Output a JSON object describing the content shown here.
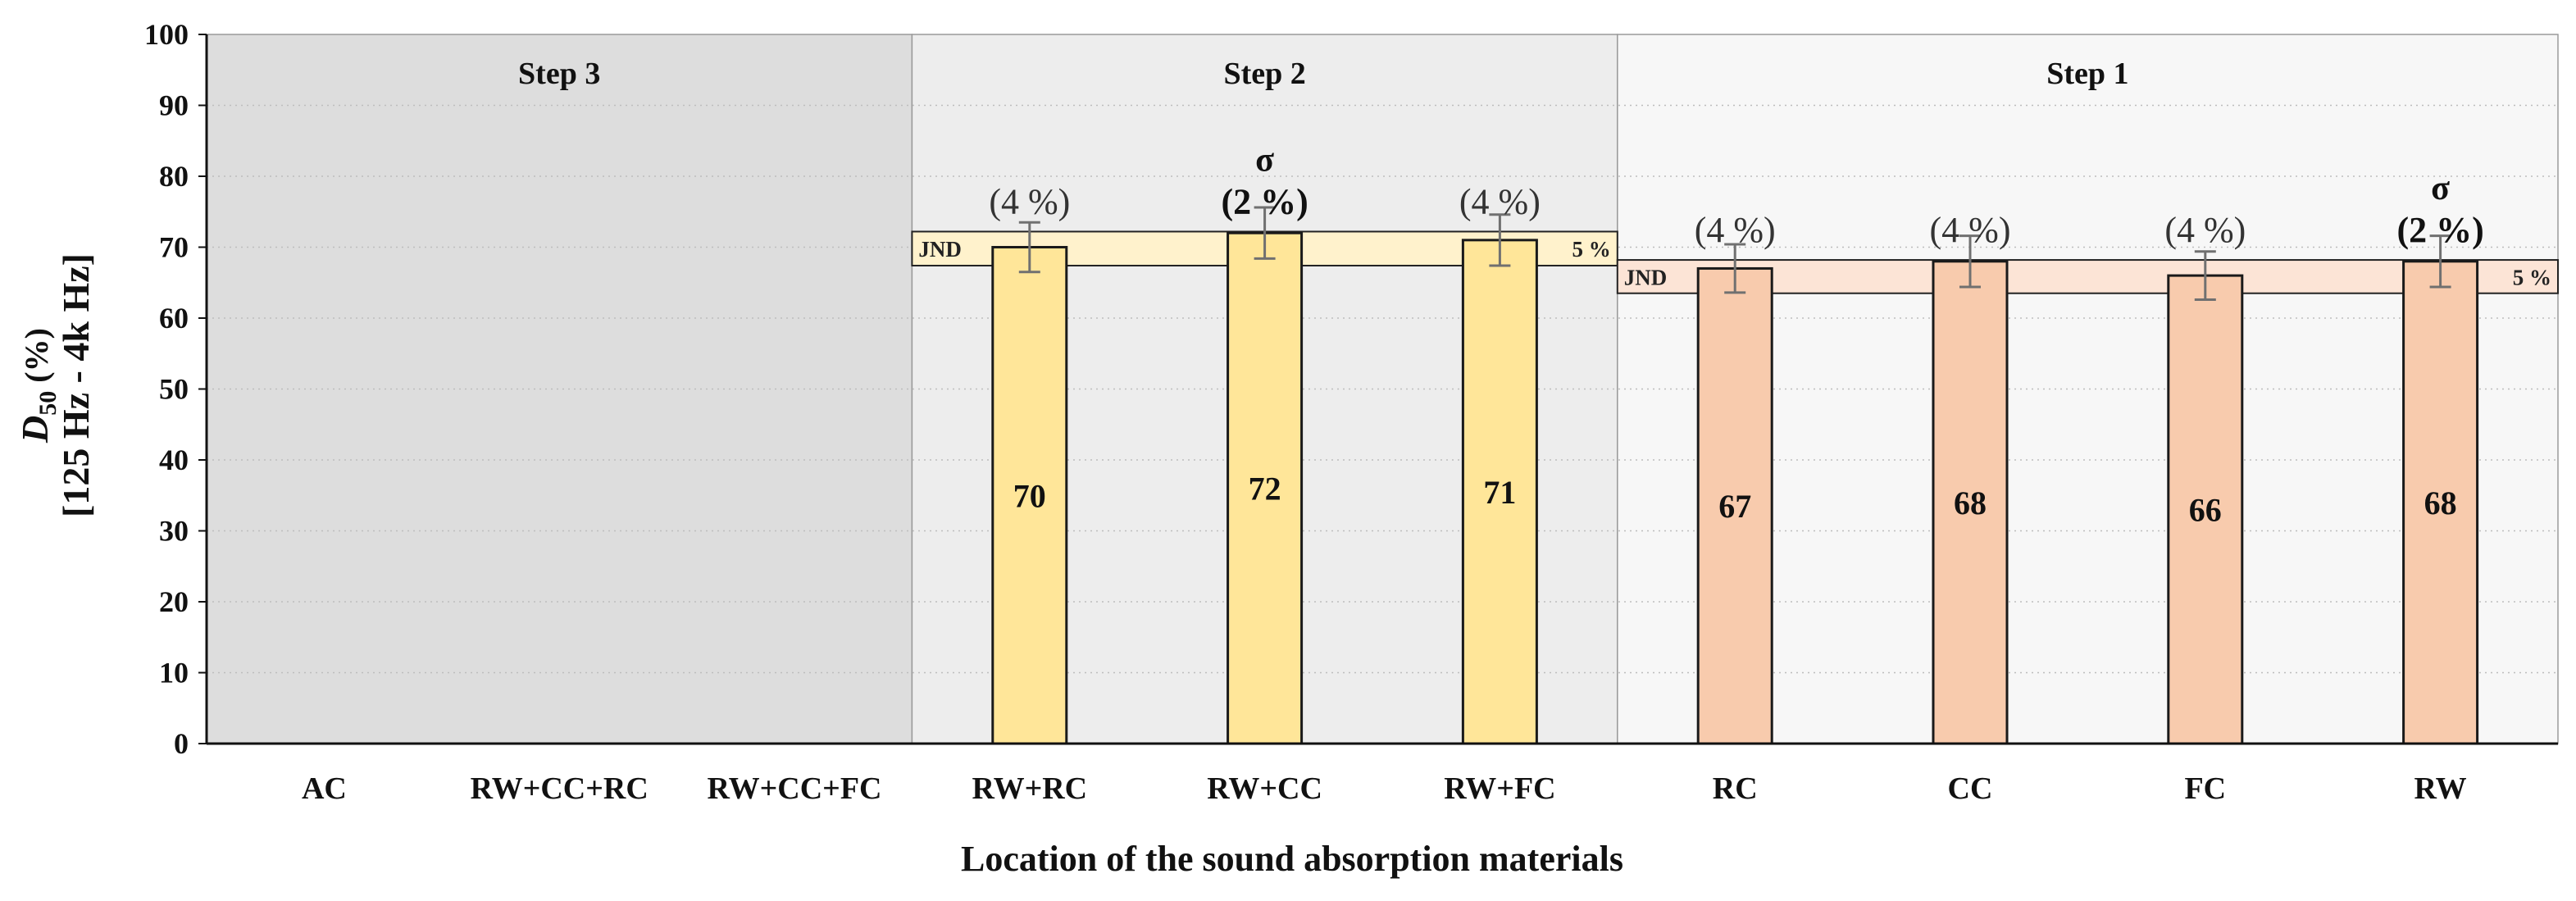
{
  "chart_data": {
    "type": "bar",
    "categories": [
      "AC",
      "RW+CC+RC",
      "RW+CC+FC",
      "RW+RC",
      "RW+CC",
      "RW+FC",
      "RC",
      "CC",
      "FC",
      "RW"
    ],
    "values": [
      null,
      null,
      null,
      70,
      72,
      71,
      67,
      68,
      66,
      68
    ],
    "value_labels": [
      "",
      "",
      "",
      "70",
      "72",
      "71",
      "67",
      "68",
      "66",
      "68"
    ],
    "errors": [
      null,
      null,
      null,
      3.5,
      3.6,
      3.6,
      3.4,
      3.6,
      3.4,
      3.6
    ],
    "sigma_labels": [
      "",
      "",
      "",
      "(4 %)",
      "(2 %)",
      "(4 %)",
      "(4 %)",
      "(4 %)",
      "(4 %)",
      "(2 %)"
    ],
    "sigma_bold": [
      false,
      false,
      false,
      false,
      true,
      false,
      false,
      false,
      false,
      true
    ],
    "sigma_symbol": "σ",
    "sigma_symbol_on": [
      false,
      false,
      false,
      false,
      true,
      false,
      false,
      false,
      false,
      true
    ],
    "bar_colors": [
      "",
      "",
      "",
      "#FFE699",
      "#FFE699",
      "#FFE699",
      "#F8CBAD",
      "#F8CBAD",
      "#F8CBAD",
      "#F8CBAD"
    ],
    "steps": [
      {
        "label": "Step 3",
        "from": 0,
        "to": 2,
        "bg": "#DDDDDD"
      },
      {
        "label": "Step 2",
        "from": 3,
        "to": 5,
        "bg": "#EDEDED"
      },
      {
        "label": "Step 1",
        "from": 6,
        "to": 9,
        "bg": "#F7F7F7"
      }
    ],
    "jnd_bands": [
      {
        "from": 3,
        "to": 5,
        "low": 67.4,
        "high": 72.2,
        "color": "#FFF2CC",
        "left_label": "JND",
        "right_label": "5 %"
      },
      {
        "from": 6,
        "to": 9,
        "low": 63.5,
        "high": 68.2,
        "color": "#FCE4D6",
        "left_label": "JND",
        "right_label": "5 %"
      }
    ],
    "ylim": [
      0,
      100
    ],
    "yticks": [
      0,
      10,
      20,
      30,
      40,
      50,
      60,
      70,
      80,
      90,
      100
    ],
    "xlabel": "Location of the sound absorption materials",
    "ylabel_main": "D",
    "ylabel_sub": "50",
    "ylabel_unit": " (%)",
    "ylabel_line2": "[125 Hz - 4k Hz]",
    "grid": true
  }
}
